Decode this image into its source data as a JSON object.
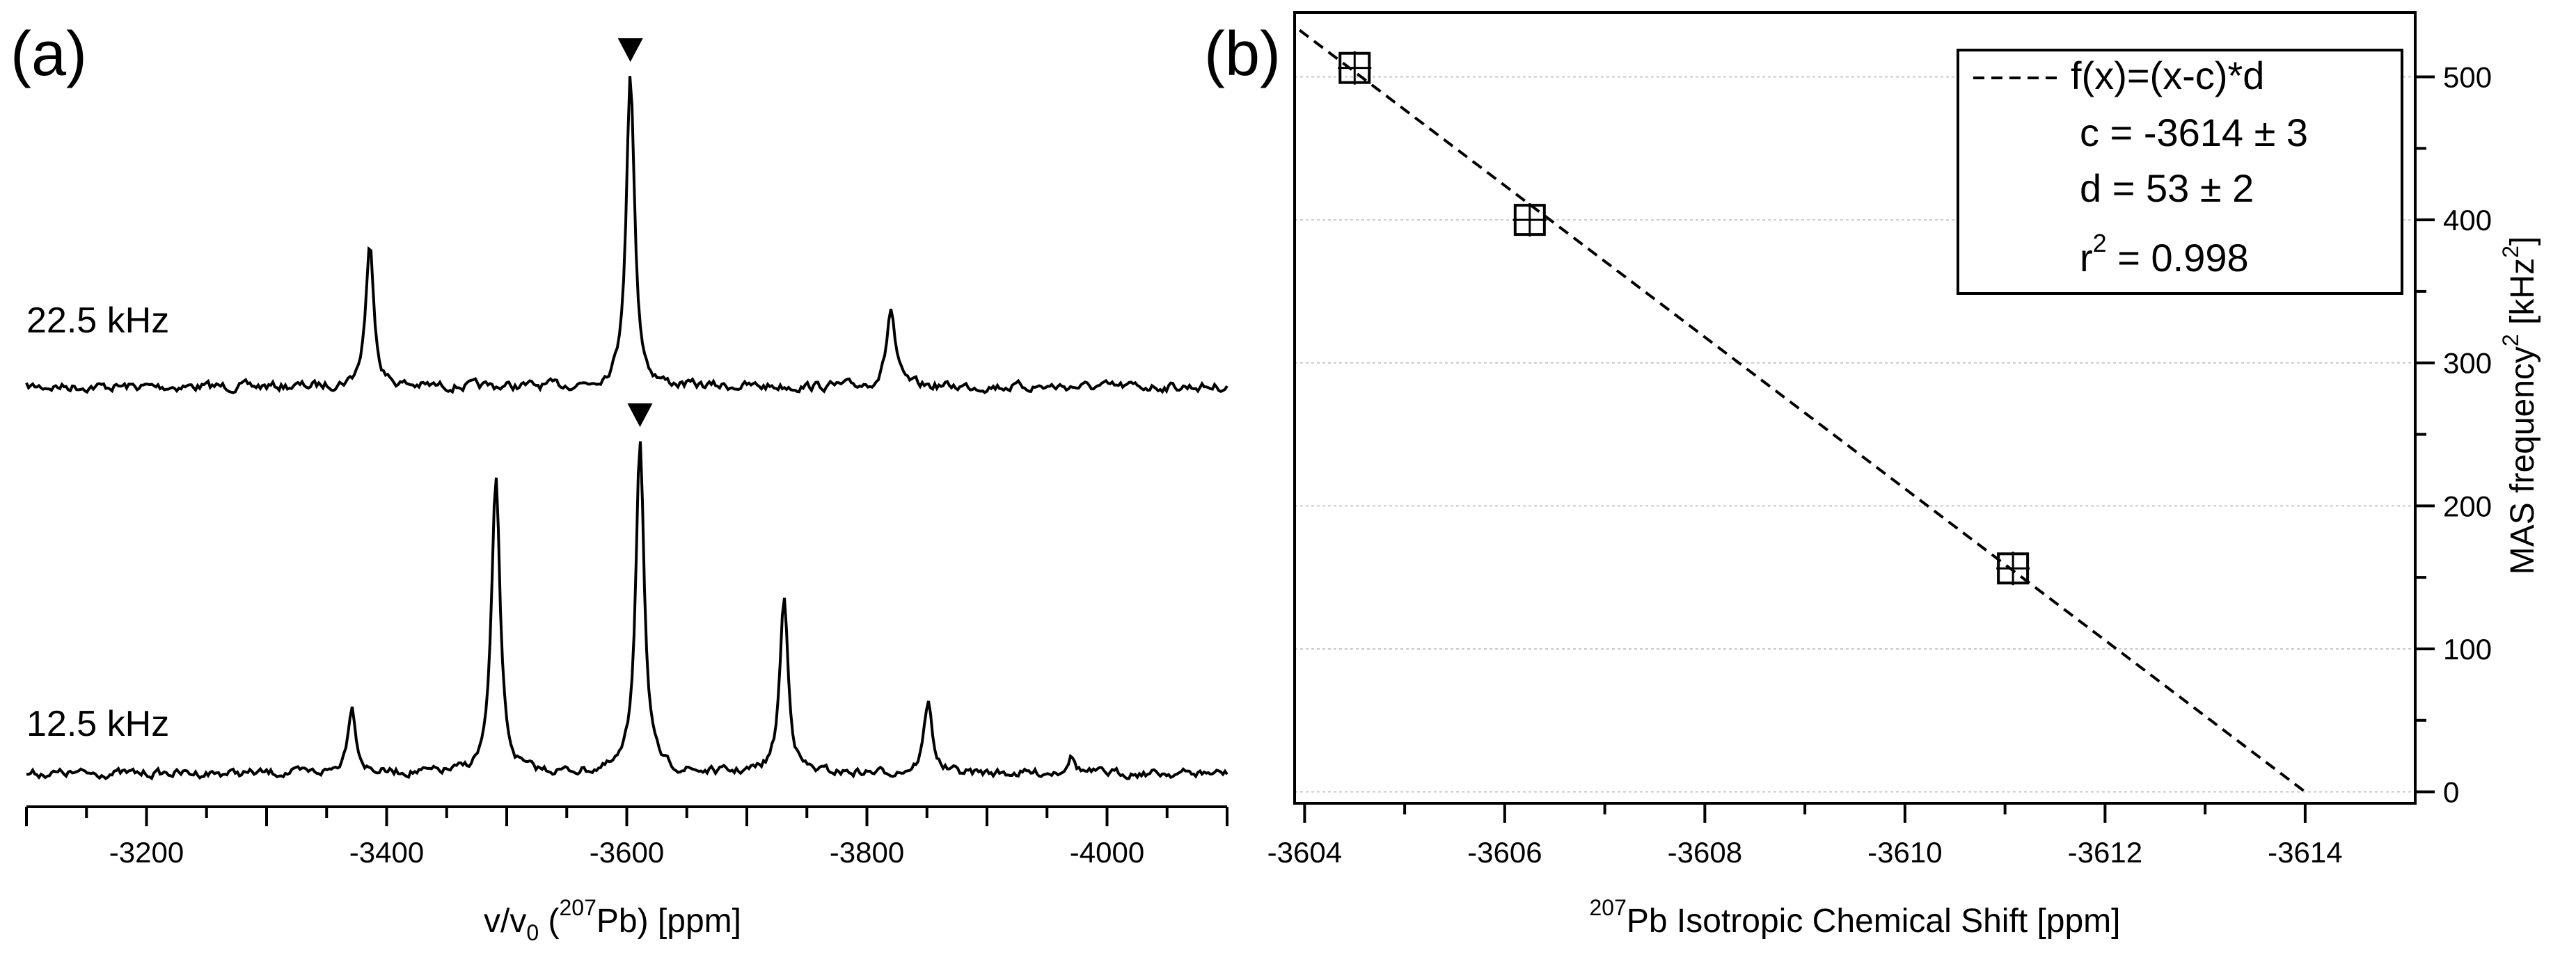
{
  "chart_data": [
    {
      "panel": "(a)",
      "type": "line",
      "xlabel_parts": [
        "v/v",
        "0",
        " (",
        "207",
        "Pb) [ppm]"
      ],
      "x_ticks": [
        -3200,
        -3400,
        -3600,
        -3800,
        -4000
      ],
      "x_tick_labels": [
        "-3200",
        "-3400",
        "-3600",
        "-3800",
        "-4000"
      ],
      "xlim": [
        -3100,
        -4100
      ],
      "x_reversed": true,
      "series": [
        {
          "name": "22.5 kHz",
          "peaks": [
            {
              "x": -3386,
              "height": 0.45
            },
            {
              "x": -3603,
              "height": 1.0
            },
            {
              "x": -3820,
              "height": 0.25
            }
          ],
          "isotropic_marker_x": -3603
        },
        {
          "name": "12.5 kHz",
          "peaks": [
            {
              "x": -3371,
              "height": 0.2
            },
            {
              "x": -3491,
              "height": 0.88
            },
            {
              "x": -3611,
              "height": 1.0
            },
            {
              "x": -3731,
              "height": 0.52
            },
            {
              "x": -3851,
              "height": 0.21
            },
            {
              "x": -3970,
              "height": 0.05
            }
          ],
          "isotropic_marker_x": -3611
        }
      ]
    },
    {
      "panel": "(b)",
      "type": "scatter",
      "xlabel_sup": "207",
      "xlabel": "Pb Isotropic Chemical Shift [ppm]",
      "ylabel_main": "MAS frequency",
      "ylabel_sup": "2",
      "ylabel_unit": " [kHz",
      "ylabel_unit_sup": "2",
      "ylabel_close": "]",
      "x_ticks": [
        -3604,
        -3606,
        -3608,
        -3610,
        -3612,
        -3614
      ],
      "x_tick_labels": [
        "-3604",
        "-3606",
        "-3608",
        "-3610",
        "-3612",
        "-3614"
      ],
      "y_ticks": [
        0,
        100,
        200,
        300,
        400,
        500
      ],
      "y_tick_labels": [
        "0",
        "100",
        "200",
        "300",
        "400",
        "500"
      ],
      "xlim": [
        -3603.9,
        -3615.1
      ],
      "ylim": [
        -8,
        545
      ],
      "grid": true,
      "points": [
        {
          "x": -3604.5,
          "y": 506.25
        },
        {
          "x": -3606.25,
          "y": 400
        },
        {
          "x": -3611.08,
          "y": 156.25
        }
      ],
      "fit": {
        "c": -3614,
        "d": 53
      },
      "legend": {
        "line_label": "f(x)=(x-c)*d",
        "c_line": "c = -3614 ± 3",
        "d_line": "d = 53 ± 2",
        "r_prefix": "r",
        "r_sup": "2",
        "r_value": " = 0.998"
      }
    }
  ]
}
